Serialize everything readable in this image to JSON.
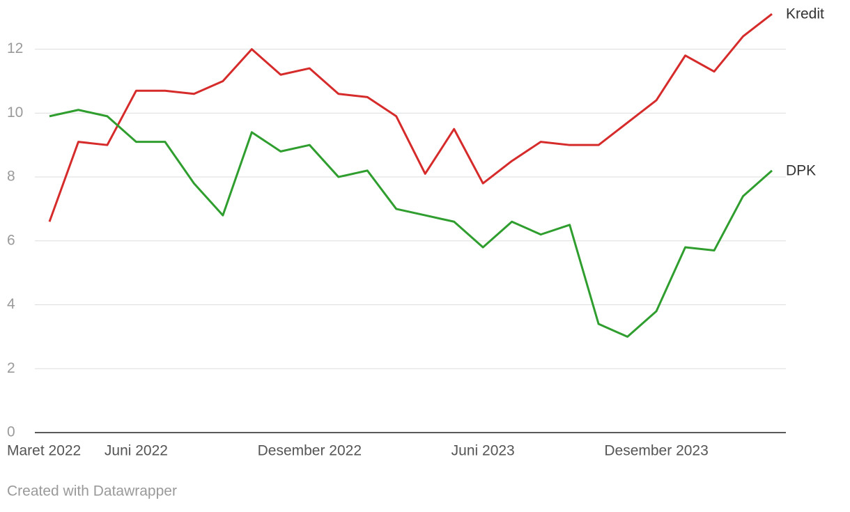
{
  "chart_data": {
    "type": "line",
    "categories": [
      "Maret 2022",
      null,
      null,
      "Juni 2022",
      null,
      null,
      null,
      null,
      null,
      "Desember 2022",
      null,
      null,
      null,
      null,
      null,
      "Juni 2023",
      null,
      null,
      null,
      null,
      null,
      "Desember 2023",
      null,
      null,
      null,
      null
    ],
    "series": [
      {
        "name": "Kredit",
        "color": "#d62b2b",
        "values": [
          6.6,
          9.1,
          9.0,
          10.7,
          10.7,
          10.6,
          11.0,
          12.0,
          11.2,
          11.4,
          10.6,
          10.5,
          9.9,
          8.1,
          9.5,
          7.8,
          8.5,
          9.1,
          9.0,
          9.0,
          9.7,
          10.4,
          11.8,
          11.3,
          12.4,
          13.1
        ]
      },
      {
        "name": "DPK",
        "color": "#2f9e2f",
        "values": [
          9.9,
          10.1,
          9.9,
          9.1,
          9.1,
          7.8,
          6.8,
          9.4,
          8.8,
          9.0,
          8.0,
          8.2,
          7.0,
          6.8,
          6.6,
          5.8,
          6.6,
          6.2,
          6.5,
          3.4,
          3.0,
          3.8,
          5.8,
          5.7,
          7.4,
          8.2
        ]
      }
    ],
    "ylim": [
      0,
      12.95
    ],
    "yticks": [
      0,
      2,
      4,
      6,
      8,
      10,
      12
    ],
    "grid": true,
    "footer": "Created with Datawrapper"
  }
}
